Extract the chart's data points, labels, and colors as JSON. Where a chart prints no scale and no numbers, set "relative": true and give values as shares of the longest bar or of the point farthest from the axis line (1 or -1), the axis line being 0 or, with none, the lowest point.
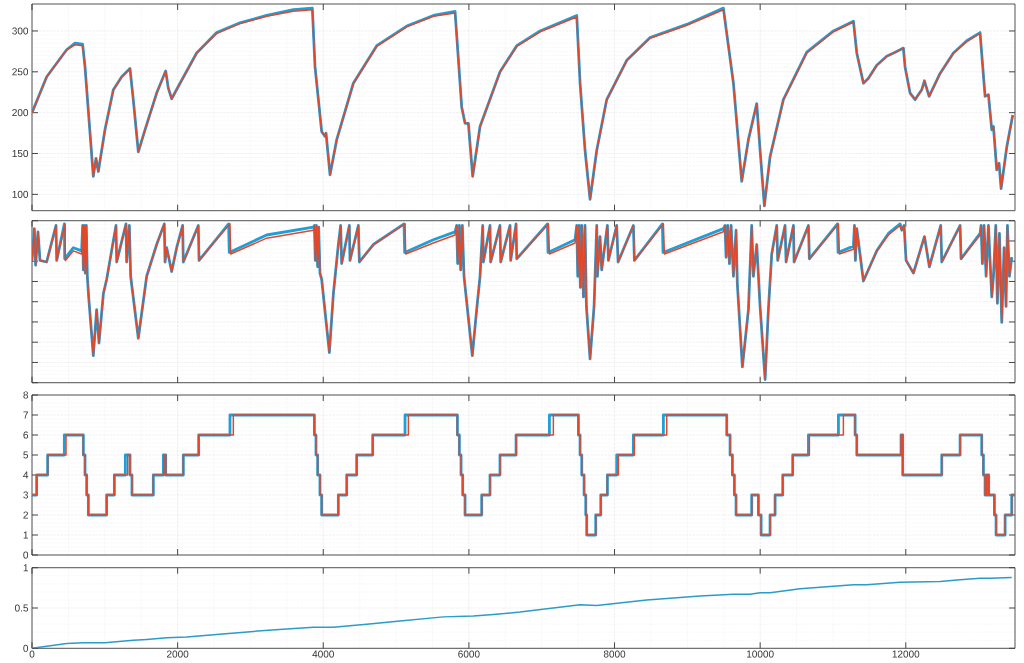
{
  "chart_data": [
    {
      "type": "line",
      "xlim": [
        0,
        13500
      ],
      "xticks": [
        0,
        2000,
        4000,
        6000,
        8000,
        10000,
        12000
      ],
      "ylim": [
        80,
        333
      ],
      "yticks": [
        100,
        150,
        200,
        250,
        300
      ],
      "grid": true,
      "tick_labels": "y",
      "series": [
        {
          "color": "#1f9ed8",
          "x": [
            0,
            202,
            476,
            590,
            695,
            728,
            797,
            842,
            879,
            911,
            1002,
            1117,
            1232,
            1346,
            1392,
            1460,
            1552,
            1712,
            1836,
            1872,
            1918,
            2033,
            2261,
            2536,
            2856,
            3223,
            3589,
            3850,
            3887,
            3978,
            4024,
            4038,
            4093,
            4185,
            4413,
            4734,
            5146,
            5512,
            5810,
            5901,
            5947,
            5993,
            6052,
            6153,
            6428,
            6657,
            6977,
            7481,
            7527,
            7595,
            7664,
            7756,
            7893,
            8168,
            8488,
            8992,
            9495,
            9541,
            9633,
            9747,
            9839,
            9953,
            9999,
            10058,
            10136,
            10319,
            10640,
            11006,
            11281,
            11327,
            11418,
            11487,
            11601,
            11738,
            11876,
            11967,
            11990,
            12059,
            12128,
            12219,
            12256,
            12320,
            12471,
            12654,
            12837,
            13020,
            13089,
            13135,
            13181,
            13204,
            13249,
            13281,
            13309,
            13387,
            13469
          ],
          "values": [
            200,
            244,
            277,
            285,
            284,
            256,
            175,
            122,
            144,
            128,
            179,
            228,
            244,
            254,
            215,
            152,
            179,
            224,
            251,
            230,
            217,
            236,
            273,
            298,
            310,
            319,
            326,
            328,
            256,
            177,
            171,
            175,
            124,
            167,
            236,
            282,
            306,
            319,
            324,
            207,
            187,
            187,
            122,
            183,
            250,
            282,
            300,
            319,
            236,
            154,
            94,
            154,
            216,
            264,
            292,
            308,
            328,
            297,
            236,
            116,
            167,
            211,
            154,
            86,
            146,
            216,
            274,
            300,
            312,
            273,
            236,
            242,
            258,
            269,
            275,
            279,
            256,
            224,
            216,
            228,
            239,
            220,
            248,
            273,
            288,
            298,
            220,
            222,
            179,
            183,
            130,
            138,
            107,
            158,
            197
          ]
        },
        {
          "color": "#e0482c",
          "x": [
            0,
            202,
            476,
            590,
            695,
            728,
            797,
            842,
            879,
            911,
            1002,
            1117,
            1232,
            1346,
            1392,
            1460,
            1552,
            1712,
            1836,
            1872,
            1918,
            2033,
            2261,
            2536,
            2856,
            3223,
            3589,
            3850,
            3887,
            3978,
            4024,
            4038,
            4093,
            4185,
            4413,
            4734,
            5146,
            5512,
            5810,
            5901,
            5947,
            5993,
            6052,
            6153,
            6428,
            6657,
            6977,
            7481,
            7527,
            7595,
            7664,
            7756,
            7893,
            8168,
            8488,
            8992,
            9495,
            9541,
            9633,
            9747,
            9839,
            9953,
            9999,
            10058,
            10136,
            10319,
            10640,
            11006,
            11281,
            11327,
            11418,
            11487,
            11601,
            11738,
            11876,
            11967,
            11990,
            12059,
            12128,
            12219,
            12256,
            12320,
            12471,
            12654,
            12837,
            13020,
            13089,
            13135,
            13181,
            13204,
            13249,
            13281,
            13309,
            13387,
            13469
          ],
          "values": [
            200,
            244,
            277,
            283,
            282,
            256,
            175,
            122,
            144,
            128,
            179,
            228,
            244,
            254,
            215,
            152,
            179,
            224,
            251,
            230,
            217,
            236,
            273,
            297,
            309,
            318,
            324,
            326,
            256,
            177,
            171,
            175,
            124,
            167,
            236,
            281,
            305,
            318,
            322,
            207,
            187,
            187,
            122,
            183,
            250,
            281,
            299,
            317,
            236,
            154,
            94,
            154,
            216,
            264,
            291,
            307,
            326,
            297,
            236,
            116,
            167,
            211,
            154,
            86,
            146,
            216,
            273,
            299,
            311,
            273,
            236,
            242,
            258,
            269,
            275,
            279,
            256,
            224,
            216,
            228,
            239,
            220,
            248,
            273,
            287,
            297,
            220,
            222,
            179,
            183,
            130,
            138,
            107,
            158,
            197
          ]
        }
      ]
    },
    {
      "type": "line",
      "xlim": [
        0,
        13500
      ],
      "xticks": [
        0,
        2000,
        4000,
        6000,
        8000,
        10000,
        12000
      ],
      "relative": true,
      "grid": true,
      "tick_labels": false,
      "series": [
        {
          "color": "#1f9ed8",
          "x": [
            0,
            32,
            50,
            82,
            110,
            201,
            330,
            339,
            445,
            449,
            568,
            682,
            696,
            705,
            719,
            732,
            746,
            760,
            778,
            842,
            888,
            920,
            980,
            1025,
            1154,
            1163,
            1291,
            1300,
            1337,
            1355,
            1460,
            1575,
            1712,
            1817,
            1827,
            1850,
            1918,
            1987,
            2069,
            2078,
            2284,
            2294,
            2490,
            2700,
            2709,
            3223,
            3864,
            3878,
            3891,
            3905,
            3923,
            3937,
            3955,
            3978,
            4084,
            4139,
            4207,
            4239,
            4253,
            4358,
            4367,
            4482,
            4496,
            4688,
            5109,
            5118,
            5512,
            5810,
            5832,
            5846,
            5869,
            5887,
            5910,
            5933,
            6047,
            6107,
            6153,
            6190,
            6199,
            6290,
            6299,
            6427,
            6437,
            6565,
            6574,
            6648,
            6657,
            7078,
            7087,
            7458,
            7481,
            7495,
            7513,
            7531,
            7550,
            7573,
            7595,
            7614,
            7664,
            7719,
            7756,
            7765,
            7801,
            7824,
            7902,
            7916,
            8030,
            8049,
            8259,
            8273,
            8657,
            8666,
            9495,
            9518,
            9532,
            9555,
            9578,
            9601,
            9633,
            9669,
            9687,
            9756,
            9839,
            9884,
            9907,
            9953,
            9999,
            10068,
            10113,
            10159,
            10228,
            10241,
            10342,
            10356,
            10457,
            10466,
            10663,
            10676,
            11061,
            11070,
            11281,
            11295,
            11308,
            11327,
            11418,
            11601,
            11761,
            11922,
            11945,
            11977,
            12004,
            12105,
            12256,
            12324,
            12480,
            12494,
            12746,
            12759,
            13020,
            13034,
            13052,
            13075,
            13103,
            13135,
            13181,
            13204,
            13236,
            13258,
            13286,
            13318,
            13350,
            13377,
            13396,
            13423,
            13455
          ],
          "values": [
            0.77,
            0.97,
            0.74,
            0.95,
            0.77,
            0.76,
            0.99,
            0.77,
            1.0,
            0.78,
            0.85,
            0.83,
            0.99,
            0.71,
            0.99,
            0.69,
            0.99,
            0.67,
            0.54,
            0.17,
            0.46,
            0.25,
            0.56,
            0.65,
            0.99,
            0.76,
            1.0,
            0.76,
            0.99,
            0.67,
            0.28,
            0.67,
            0.87,
            1.0,
            0.76,
            0.85,
            0.7,
            0.85,
            0.99,
            0.76,
            0.99,
            0.77,
            0.88,
            1.0,
            0.82,
            0.93,
            0.98,
            0.99,
            0.77,
            0.99,
            0.73,
            0.98,
            0.69,
            0.65,
            0.19,
            0.56,
            0.87,
            0.99,
            0.75,
            0.99,
            0.77,
            0.99,
            0.76,
            0.87,
            1.0,
            0.82,
            0.9,
            0.95,
            0.99,
            0.75,
            0.99,
            0.71,
            0.99,
            0.67,
            0.17,
            0.46,
            0.67,
            0.99,
            0.76,
            0.99,
            0.76,
            0.99,
            0.76,
            0.99,
            0.77,
            1.0,
            0.78,
            1.0,
            0.82,
            0.9,
            0.99,
            0.67,
            0.99,
            0.6,
            0.99,
            0.54,
            0.99,
            0.48,
            0.15,
            0.48,
            0.99,
            0.67,
            0.92,
            0.71,
            0.99,
            0.77,
            0.99,
            0.76,
            0.99,
            0.77,
            1.0,
            0.82,
            0.97,
            0.99,
            0.79,
            0.99,
            0.75,
            0.99,
            0.67,
            0.96,
            0.62,
            0.1,
            0.46,
            0.99,
            0.67,
            0.87,
            0.48,
            0.02,
            0.46,
            0.81,
            0.99,
            0.77,
            0.99,
            0.76,
            0.99,
            0.76,
            0.99,
            0.78,
            1.0,
            0.82,
            0.86,
            0.99,
            0.77,
            0.97,
            0.64,
            0.83,
            0.94,
            1.0,
            0.96,
            0.99,
            0.77,
            0.69,
            0.92,
            0.73,
            0.99,
            0.76,
            0.99,
            0.78,
            0.94,
            0.99,
            0.75,
            0.99,
            0.67,
            0.99,
            0.54,
            0.67,
            0.99,
            0.5,
            0.94,
            0.38,
            0.85,
            0.48,
            0.99,
            0.67,
            0.79
          ]
        },
        {
          "color": "#e0482c",
          "x": [
            0,
            32,
            50,
            82,
            110,
            201,
            330,
            339,
            453,
            458,
            568,
            682,
            696,
            705,
            719,
            732,
            746,
            760,
            778,
            842,
            888,
            920,
            980,
            1025,
            1154,
            1163,
            1291,
            1300,
            1337,
            1355,
            1460,
            1575,
            1712,
            1817,
            1827,
            1850,
            1918,
            1987,
            2069,
            2078,
            2284,
            2294,
            2490,
            2719,
            2728,
            3223,
            3864,
            3878,
            3891,
            3905,
            3923,
            3937,
            3955,
            3978,
            4084,
            4139,
            4207,
            4239,
            4253,
            4358,
            4367,
            4482,
            4496,
            4688,
            5123,
            5132,
            5512,
            5810,
            5832,
            5846,
            5869,
            5887,
            5910,
            5933,
            6047,
            6107,
            6153,
            6190,
            6199,
            6290,
            6299,
            6427,
            6437,
            6565,
            6574,
            6648,
            6657,
            7092,
            7106,
            7458,
            7481,
            7495,
            7513,
            7531,
            7550,
            7573,
            7595,
            7614,
            7664,
            7719,
            7756,
            7765,
            7801,
            7824,
            7902,
            7916,
            8030,
            8049,
            8259,
            8273,
            8671,
            8685,
            9495,
            9518,
            9532,
            9555,
            9578,
            9601,
            9633,
            9669,
            9687,
            9756,
            9839,
            9884,
            9907,
            9953,
            9999,
            10068,
            10113,
            10159,
            10228,
            10241,
            10342,
            10356,
            10457,
            10466,
            10663,
            10676,
            11075,
            11088,
            11281,
            11295,
            11308,
            11327,
            11418,
            11601,
            11761,
            11922,
            11945,
            11977,
            12004,
            12105,
            12256,
            12324,
            12480,
            12494,
            12746,
            12759,
            13020,
            13034,
            13052,
            13075,
            13103,
            13135,
            13181,
            13204,
            13236,
            13258,
            13286,
            13318,
            13350,
            13377,
            13396,
            13423,
            13455
          ],
          "values": [
            0.77,
            0.97,
            0.74,
            0.95,
            0.77,
            0.76,
            0.99,
            0.77,
            1.0,
            0.77,
            0.83,
            0.81,
            0.99,
            0.71,
            0.99,
            0.69,
            0.99,
            0.67,
            0.54,
            0.17,
            0.46,
            0.25,
            0.56,
            0.65,
            0.99,
            0.76,
            1.0,
            0.76,
            0.99,
            0.67,
            0.28,
            0.67,
            0.87,
            1.0,
            0.76,
            0.85,
            0.7,
            0.85,
            0.99,
            0.76,
            0.99,
            0.77,
            0.88,
            1.0,
            0.81,
            0.91,
            0.96,
            0.99,
            0.77,
            0.99,
            0.73,
            0.98,
            0.69,
            0.65,
            0.19,
            0.56,
            0.87,
            0.99,
            0.75,
            0.99,
            0.77,
            0.99,
            0.76,
            0.87,
            1.0,
            0.81,
            0.88,
            0.93,
            0.99,
            0.75,
            0.99,
            0.71,
            0.99,
            0.67,
            0.17,
            0.46,
            0.67,
            0.99,
            0.76,
            0.99,
            0.76,
            0.99,
            0.76,
            0.99,
            0.77,
            1.0,
            0.78,
            1.0,
            0.81,
            0.88,
            0.99,
            0.67,
            0.99,
            0.6,
            0.99,
            0.54,
            0.99,
            0.48,
            0.15,
            0.48,
            0.99,
            0.67,
            0.92,
            0.71,
            0.99,
            0.77,
            0.99,
            0.76,
            0.99,
            0.77,
            1.0,
            0.81,
            0.95,
            0.99,
            0.79,
            0.99,
            0.75,
            0.99,
            0.67,
            0.96,
            0.62,
            0.1,
            0.46,
            0.99,
            0.67,
            0.87,
            0.48,
            0.02,
            0.46,
            0.81,
            0.99,
            0.77,
            0.99,
            0.76,
            0.99,
            0.76,
            0.99,
            0.78,
            1.0,
            0.81,
            0.84,
            0.99,
            0.77,
            0.97,
            0.64,
            0.83,
            0.93,
            0.99,
            0.96,
            0.99,
            0.77,
            0.69,
            0.92,
            0.73,
            0.99,
            0.76,
            0.99,
            0.78,
            0.93,
            0.99,
            0.75,
            0.99,
            0.67,
            0.99,
            0.54,
            0.67,
            0.99,
            0.5,
            0.94,
            0.38,
            0.85,
            0.48,
            0.99,
            0.67,
            0.79
          ]
        }
      ]
    },
    {
      "type": "step",
      "xlim": [
        0,
        13500
      ],
      "xticks": [
        0,
        2000,
        4000,
        6000,
        8000,
        10000,
        12000
      ],
      "ylim": [
        0,
        8
      ],
      "yticks": [
        0,
        1,
        2,
        3,
        4,
        5,
        6,
        7,
        8
      ],
      "grid": true,
      "tick_labels": "y",
      "series": [
        {
          "color": "#1f9ed8",
          "x": [
            0,
            64,
            215,
            444,
            705,
            728,
            751,
            774,
            1025,
            1131,
            1282,
            1346,
            1373,
            1666,
            1804,
            1836,
            2078,
            2289,
            2719,
            3878,
            3900,
            3923,
            3955,
            3978,
            4207,
            4322,
            4459,
            4679,
            5123,
            5842,
            5869,
            5892,
            5915,
            5947,
            6176,
            6290,
            6427,
            6648,
            7106,
            7504,
            7527,
            7550,
            7582,
            7605,
            7618,
            7742,
            7811,
            7902,
            8030,
            8259,
            8671,
            9541,
            9587,
            9619,
            9646,
            9669,
            9884,
            9976,
            10013,
            10136,
            10205,
            10310,
            10447,
            10663,
            11075,
            11304,
            11327,
            11935,
            11958,
            12494,
            12746,
            13043,
            13066,
            13089,
            13112,
            13139,
            13217,
            13240,
            13364,
            13455,
            13495
          ],
          "values": [
            3,
            4,
            5,
            6,
            5,
            4,
            3,
            2,
            3,
            4,
            5,
            4,
            3,
            4,
            5,
            4,
            5,
            6,
            7,
            6,
            5,
            4,
            3,
            2,
            3,
            4,
            5,
            6,
            7,
            6,
            5,
            4,
            3,
            2,
            3,
            4,
            5,
            6,
            7,
            6,
            5,
            4,
            3,
            2,
            1,
            2,
            3,
            4,
            5,
            6,
            7,
            6,
            5,
            4,
            3,
            2,
            3,
            2,
            1,
            2,
            3,
            4,
            5,
            6,
            7,
            6,
            5,
            6,
            4,
            5,
            6,
            5,
            4,
            3,
            4,
            3,
            2,
            1,
            2,
            3,
            3
          ]
        },
        {
          "color": "#e0482c",
          "x": [
            0,
            64,
            215,
            467,
            705,
            728,
            751,
            774,
            1025,
            1131,
            1314,
            1346,
            1373,
            1666,
            1813,
            1836,
            2078,
            2289,
            2765,
            3878,
            3900,
            3923,
            3955,
            3978,
            4207,
            4322,
            4459,
            4679,
            5169,
            5842,
            5869,
            5892,
            5915,
            5947,
            6176,
            6290,
            6427,
            6648,
            7160,
            7504,
            7527,
            7550,
            7582,
            7605,
            7618,
            7742,
            7811,
            7902,
            8053,
            8273,
            8717,
            9541,
            9587,
            9619,
            9646,
            9669,
            9884,
            9976,
            10013,
            10136,
            10205,
            10310,
            10447,
            10676,
            11143,
            11304,
            11327,
            11935,
            11958,
            12494,
            12746,
            13043,
            13066,
            13089,
            13112,
            13139,
            13217,
            13240,
            13364,
            13455,
            13495
          ],
          "values": [
            3,
            4,
            5,
            6,
            5,
            4,
            3,
            2,
            3,
            4,
            5,
            4,
            3,
            4,
            5,
            4,
            5,
            6,
            7,
            6,
            5,
            4,
            3,
            2,
            3,
            4,
            5,
            6,
            7,
            6,
            5,
            4,
            3,
            2,
            3,
            4,
            5,
            6,
            7,
            6,
            5,
            4,
            3,
            2,
            1,
            2,
            3,
            4,
            5,
            6,
            7,
            6,
            5,
            4,
            3,
            2,
            3,
            2,
            1,
            2,
            3,
            4,
            5,
            6,
            7,
            6,
            5,
            6,
            4,
            5,
            6,
            5,
            4,
            3,
            4,
            3,
            2,
            1,
            2,
            3,
            3
          ]
        }
      ]
    },
    {
      "type": "line",
      "xlim": [
        0,
        13500
      ],
      "xticks": [
        0,
        2000,
        4000,
        6000,
        8000,
        10000,
        12000
      ],
      "ylim": [
        0,
        1
      ],
      "yticks": [
        0,
        0.5,
        1
      ],
      "grid": true,
      "series": [
        {
          "color": "#2b9cc8",
          "x": [
            0,
            476,
            705,
            1003,
            1392,
            1575,
            1850,
            2124,
            2536,
            3040,
            3498,
            3864,
            4138,
            4596,
            5054,
            5649,
            6061,
            6336,
            6702,
            7527,
            7756,
            8442,
            9175,
            9633,
            9862,
            9999,
            10136,
            10548,
            11006,
            11281,
            11464,
            11922,
            12471,
            12746,
            13020,
            13158,
            13455
          ],
          "values": [
            0,
            0.06,
            0.07,
            0.07,
            0.1,
            0.11,
            0.13,
            0.14,
            0.17,
            0.21,
            0.24,
            0.26,
            0.26,
            0.3,
            0.34,
            0.39,
            0.4,
            0.42,
            0.45,
            0.54,
            0.53,
            0.6,
            0.65,
            0.67,
            0.67,
            0.69,
            0.69,
            0.74,
            0.77,
            0.79,
            0.79,
            0.82,
            0.83,
            0.85,
            0.87,
            0.87,
            0.88
          ]
        }
      ]
    }
  ]
}
